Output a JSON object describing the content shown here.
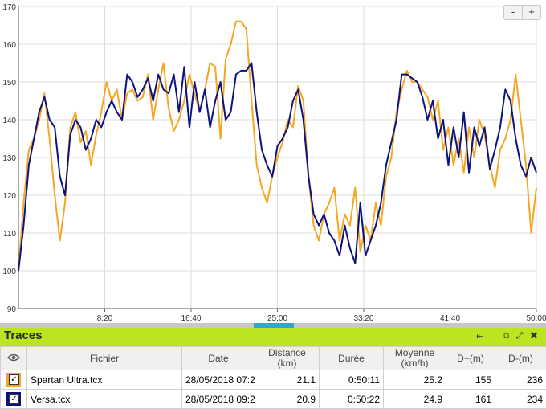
{
  "colors": {
    "orange": "#f5a623",
    "navy": "#0c127e",
    "accent": "#bde51f",
    "splitter_handle": "#2ea7d7"
  },
  "zoom": {
    "out_label": "-",
    "in_label": "+"
  },
  "chart_data": {
    "type": "line",
    "title": "",
    "xlabel": "",
    "ylabel": "",
    "x_unit": "minutes",
    "xlim": [
      0,
      50
    ],
    "ylim": [
      90,
      170
    ],
    "x_ticks": [
      8.333,
      16.667,
      25,
      33.333,
      41.667,
      50
    ],
    "x_tick_labels": [
      "8:20",
      "16:40",
      "25:00",
      "33:20",
      "41:40",
      "50:00"
    ],
    "y_ticks": [
      90,
      100,
      110,
      120,
      130,
      140,
      150,
      160,
      170
    ],
    "y_tick_labels": [
      "90",
      "100",
      "110",
      "120",
      "130",
      "140",
      "150",
      "160",
      "170"
    ],
    "grid": true,
    "series": [
      {
        "name": "Spartan Ultra.tcx",
        "color": "#f5a623",
        "x": [
          0,
          0.5,
          1,
          1.5,
          2,
          2.5,
          3,
          3.5,
          4,
          4.5,
          5,
          5.5,
          6,
          6.5,
          7,
          7.5,
          8,
          8.5,
          9,
          9.5,
          10,
          10.5,
          11,
          11.5,
          12,
          12.5,
          13,
          13.5,
          14,
          14.5,
          15,
          15.5,
          16,
          16.5,
          17,
          17.5,
          18,
          18.5,
          19,
          19.5,
          20,
          20.5,
          21,
          21.5,
          22,
          22.5,
          23,
          23.5,
          24,
          24.5,
          25,
          25.5,
          26,
          26.5,
          27,
          27.5,
          28,
          28.5,
          29,
          29.5,
          30,
          30.5,
          31,
          31.5,
          32,
          32.5,
          33,
          33.5,
          34,
          34.5,
          35,
          35.5,
          36,
          36.5,
          37,
          37.5,
          38,
          38.5,
          39,
          39.5,
          40,
          40.5,
          41,
          41.5,
          42,
          42.5,
          43,
          43.5,
          44,
          44.5,
          45,
          45.5,
          46,
          46.5,
          47,
          47.5,
          48,
          48.5,
          49,
          49.5,
          50
        ],
        "y": [
          100,
          118,
          132,
          135,
          140,
          147,
          135,
          120,
          108,
          118,
          138,
          142,
          134,
          137,
          128,
          136,
          142,
          150,
          145,
          148,
          140,
          147,
          148,
          145,
          146,
          152,
          140,
          148,
          155,
          143,
          137,
          140,
          145,
          152,
          147,
          142,
          148,
          155,
          154,
          135,
          156,
          160,
          166,
          166,
          164,
          145,
          128,
          122,
          118,
          125,
          130,
          134,
          140,
          138,
          149,
          145,
          125,
          112,
          108,
          115,
          118,
          122,
          108,
          115,
          112,
          122,
          105,
          112,
          108,
          118,
          112,
          125,
          130,
          142,
          148,
          153,
          150,
          150,
          148,
          146,
          140,
          145,
          132,
          138,
          128,
          135,
          126,
          138,
          130,
          140,
          136,
          128,
          122,
          132,
          135,
          140,
          152,
          140,
          128,
          110,
          122
        ]
      },
      {
        "name": "Versa.tcx",
        "color": "#0c127e",
        "x": [
          0,
          0.5,
          1,
          1.5,
          2,
          2.5,
          3,
          3.5,
          4,
          4.5,
          5,
          5.5,
          6,
          6.5,
          7,
          7.5,
          8,
          8.5,
          9,
          9.5,
          10,
          10.5,
          11,
          11.5,
          12,
          12.5,
          13,
          13.5,
          14,
          14.5,
          15,
          15.5,
          16,
          16.5,
          17,
          17.5,
          18,
          18.5,
          19,
          19.5,
          20,
          20.5,
          21,
          21.5,
          22,
          22.5,
          23,
          23.5,
          24,
          24.5,
          25,
          25.5,
          26,
          26.5,
          27,
          27.5,
          28,
          28.5,
          29,
          29.5,
          30,
          30.5,
          31,
          31.5,
          32,
          32.5,
          33,
          33.5,
          34,
          34.5,
          35,
          35.5,
          36,
          36.5,
          37,
          37.5,
          38,
          38.5,
          39,
          39.5,
          40,
          40.5,
          41,
          41.5,
          42,
          42.5,
          43,
          43.5,
          44,
          44.5,
          45,
          45.5,
          46,
          46.5,
          47,
          47.5,
          48,
          48.5,
          49,
          49.5,
          50
        ],
        "y": [
          100,
          112,
          128,
          135,
          142,
          146,
          140,
          138,
          125,
          120,
          136,
          140,
          138,
          132,
          135,
          140,
          138,
          142,
          145,
          142,
          140,
          152,
          150,
          146,
          148,
          151,
          145,
          152,
          148,
          147,
          152,
          142,
          154,
          138,
          150,
          142,
          148,
          138,
          145,
          150,
          140,
          142,
          152,
          153,
          153,
          155,
          142,
          132,
          128,
          125,
          133,
          135,
          138,
          145,
          148,
          140,
          125,
          115,
          112,
          115,
          110,
          108,
          104,
          112,
          106,
          102,
          118,
          104,
          108,
          112,
          118,
          128,
          134,
          140,
          152,
          152,
          151,
          150,
          146,
          140,
          145,
          135,
          140,
          128,
          138,
          130,
          142,
          126,
          138,
          133,
          138,
          127,
          132,
          138,
          148,
          145,
          135,
          128,
          125,
          130,
          126
        ]
      }
    ]
  },
  "panel": {
    "title": "Traces",
    "icons": [
      "collapse-left-icon",
      "restore-icon",
      "expand-icon",
      "close-icon"
    ]
  },
  "table": {
    "headers": {
      "eye": "visibility-eye-icon",
      "fichier": "Fichier",
      "date": "Date",
      "distance": "Distance",
      "distance_unit": "(km)",
      "duree": "Durée",
      "moyenne": "Moyenne",
      "moyenne_unit": "(km/h)",
      "dplus": "D+(m)",
      "dminus": "D-(m)"
    },
    "rows": [
      {
        "color": "#f5a623",
        "checked": true,
        "fichier": "Spartan Ultra.tcx",
        "date": "28/05/2018 07:2",
        "distance": "21.1",
        "duree": "0:50:11",
        "moyenne": "25.2",
        "dplus": "155",
        "dminus": "236"
      },
      {
        "color": "#0c127e",
        "checked": true,
        "fichier": "Versa.tcx",
        "date": "28/05/2018 09:2",
        "distance": "20.9",
        "duree": "0:50:22",
        "moyenne": "24.9",
        "dplus": "161",
        "dminus": "234"
      }
    ]
  }
}
